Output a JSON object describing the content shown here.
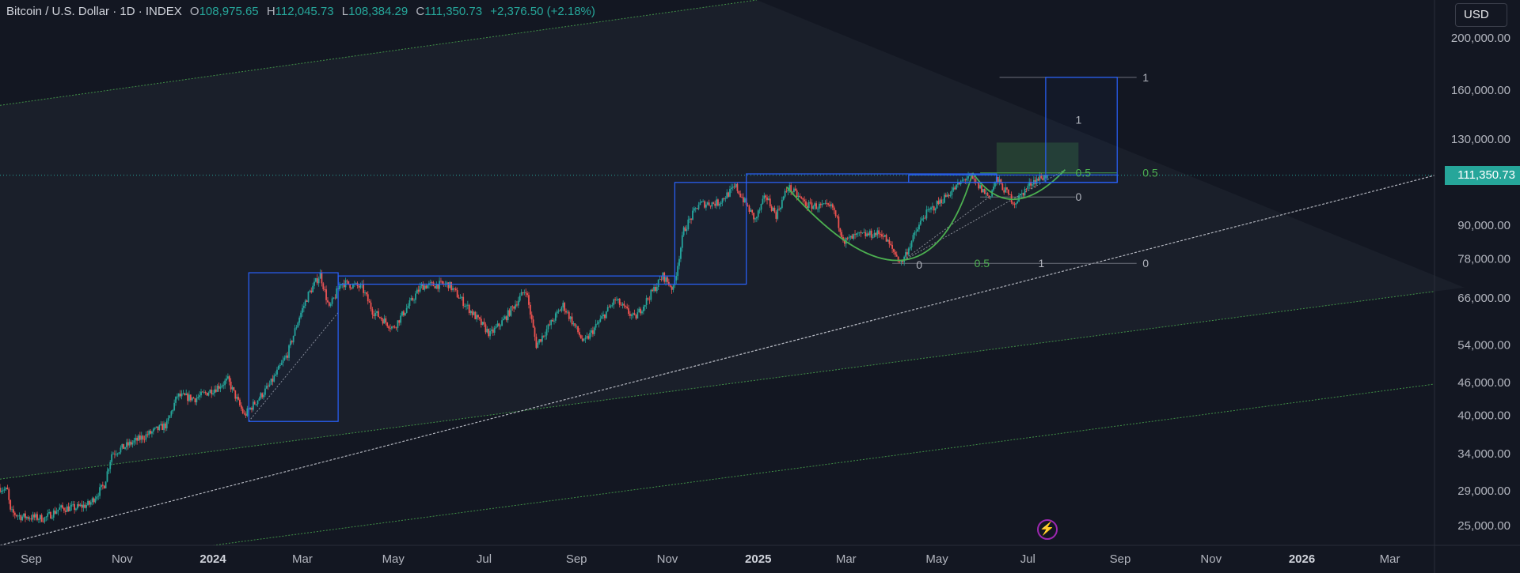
{
  "header": {
    "symbol": "Bitcoin / U.S. Dollar · 1D · INDEX",
    "open_label": "O",
    "open": "108,975.65",
    "high_label": "H",
    "high": "112,045.73",
    "low_label": "L",
    "low": "108,384.29",
    "close_label": "C",
    "close": "111,350.73",
    "change": "+2,376.50 (+2.18%)"
  },
  "currency_button": "USD",
  "last_price_tag": "111,350.73",
  "colors": {
    "background": "#131722",
    "up": "#26a69a",
    "down": "#ef5350",
    "box": "#2962ff",
    "channel": "#4caf50",
    "trend": "#d1d4dc",
    "fib_green": "#4caf50",
    "label": "#b2b5be"
  },
  "icons": [
    "lightning-icon"
  ],
  "chart_data": {
    "type": "candlestick",
    "title": "Bitcoin / U.S. Dollar · 1D · INDEX",
    "y_scale": "log",
    "ylim": [
      23000,
      235000
    ],
    "xlim": [
      "2023-08-11",
      "2026-03-31"
    ],
    "y_ticks": [
      {
        "value": 200000,
        "label": "200,000.00"
      },
      {
        "value": 160000,
        "label": "160,000.00"
      },
      {
        "value": 130000,
        "label": "130,000.00"
      },
      {
        "value": 90000,
        "label": "90,000.00"
      },
      {
        "value": 78000,
        "label": "78,000.00"
      },
      {
        "value": 66000,
        "label": "66,000.00"
      },
      {
        "value": 54000,
        "label": "54,000.00"
      },
      {
        "value": 46000,
        "label": "46,000.00"
      },
      {
        "value": 40000,
        "label": "40,000.00"
      },
      {
        "value": 34000,
        "label": "34,000.00"
      },
      {
        "value": 29000,
        "label": "29,000.00"
      },
      {
        "value": 25000,
        "label": "25,000.00"
      }
    ],
    "x_ticks": [
      {
        "date": "2023-09-01",
        "label": "Sep",
        "bold": false
      },
      {
        "date": "2023-11-01",
        "label": "Nov",
        "bold": false
      },
      {
        "date": "2024-01-01",
        "label": "2024",
        "bold": true
      },
      {
        "date": "2024-03-01",
        "label": "Mar",
        "bold": false
      },
      {
        "date": "2024-05-01",
        "label": "May",
        "bold": false
      },
      {
        "date": "2024-07-01",
        "label": "Jul",
        "bold": false
      },
      {
        "date": "2024-09-01",
        "label": "Sep",
        "bold": false
      },
      {
        "date": "2024-11-01",
        "label": "Nov",
        "bold": false
      },
      {
        "date": "2025-01-01",
        "label": "2025",
        "bold": true
      },
      {
        "date": "2025-03-01",
        "label": "Mar",
        "bold": false
      },
      {
        "date": "2025-05-01",
        "label": "May",
        "bold": false
      },
      {
        "date": "2025-07-01",
        "label": "Jul",
        "bold": false
      },
      {
        "date": "2025-09-01",
        "label": "Sep",
        "bold": false
      },
      {
        "date": "2025-11-01",
        "label": "Nov",
        "bold": false
      },
      {
        "date": "2026-01-01",
        "label": "2026",
        "bold": true
      },
      {
        "date": "2026-03-01",
        "label": "Mar",
        "bold": false
      }
    ],
    "last_price": 111350.73,
    "price_path": [
      [
        "2023-08-11",
        29400
      ],
      [
        "2023-08-16",
        29000
      ],
      [
        "2023-08-18",
        26500
      ],
      [
        "2023-08-25",
        26000
      ],
      [
        "2023-09-10",
        25800
      ],
      [
        "2023-09-20",
        26900
      ],
      [
        "2023-10-01",
        27000
      ],
      [
        "2023-10-10",
        27400
      ],
      [
        "2023-10-20",
        29800
      ],
      [
        "2023-10-25",
        34000
      ],
      [
        "2023-11-15",
        36500
      ],
      [
        "2023-12-01",
        38500
      ],
      [
        "2023-12-08",
        43500
      ],
      [
        "2023-12-20",
        43000
      ],
      [
        "2024-01-03",
        45000
      ],
      [
        "2024-01-11",
        46500
      ],
      [
        "2024-01-22",
        40000
      ],
      [
        "2024-02-08",
        45500
      ],
      [
        "2024-02-20",
        52000
      ],
      [
        "2024-02-28",
        61000
      ],
      [
        "2024-03-05",
        67000
      ],
      [
        "2024-03-13",
        73000
      ],
      [
        "2024-03-19",
        63000
      ],
      [
        "2024-03-27",
        70500
      ],
      [
        "2024-04-10",
        69000
      ],
      [
        "2024-04-17",
        62500
      ],
      [
        "2024-05-01",
        58000
      ],
      [
        "2024-05-20",
        69500
      ],
      [
        "2024-06-07",
        70000
      ],
      [
        "2024-06-25",
        61000
      ],
      [
        "2024-07-05",
        56500
      ],
      [
        "2024-07-14",
        60000
      ],
      [
        "2024-07-29",
        68500
      ],
      [
        "2024-08-05",
        54000
      ],
      [
        "2024-08-23",
        64000
      ],
      [
        "2024-09-06",
        54500
      ],
      [
        "2024-09-27",
        65500
      ],
      [
        "2024-10-10",
        60500
      ],
      [
        "2024-10-29",
        72500
      ],
      [
        "2024-11-05",
        68500
      ],
      [
        "2024-11-12",
        88000
      ],
      [
        "2024-11-22",
        98500
      ],
      [
        "2024-12-05",
        99000
      ],
      [
        "2024-12-17",
        106000
      ],
      [
        "2024-12-30",
        92000
      ],
      [
        "2025-01-06",
        102000
      ],
      [
        "2025-01-13",
        94000
      ],
      [
        "2025-01-21",
        106000
      ],
      [
        "2025-02-03",
        98000
      ],
      [
        "2025-02-20",
        97000
      ],
      [
        "2025-02-28",
        84000
      ],
      [
        "2025-03-08",
        86000
      ],
      [
        "2025-03-25",
        87000
      ],
      [
        "2025-04-07",
        76500
      ],
      [
        "2025-04-22",
        93500
      ],
      [
        "2025-05-09",
        103000
      ],
      [
        "2025-05-22",
        111000
      ],
      [
        "2025-06-05",
        101500
      ],
      [
        "2025-06-10",
        109500
      ],
      [
        "2025-06-22",
        99000
      ],
      [
        "2025-07-04",
        108500
      ],
      [
        "2025-07-14",
        111350.73
      ]
    ],
    "annotations": {
      "channel_lines": [
        {
          "p1": [
            "2023-08-11",
            150000
          ],
          "p2": [
            "2024-12-31",
            235000
          ]
        },
        {
          "p1": [
            "2023-08-11",
            30500
          ],
          "p2": [
            "2026-04-20",
            69000
          ]
        },
        {
          "p1": [
            "2024-01-01",
            23000
          ],
          "p2": [
            "2026-04-20",
            46500
          ]
        }
      ],
      "trend_line": {
        "p1": [
          "2023-08-11",
          23000
        ],
        "p2": [
          "2026-04-20",
          115000
        ]
      },
      "boxes": [
        {
          "t1": "2024-01-25",
          "t2": "2024-03-25",
          "top": 73500,
          "bottom": 39000
        },
        {
          "t1": "2024-03-25",
          "t2": "2024-11-06",
          "top": 72500,
          "bottom": 70000
        },
        {
          "t1": "2024-11-06",
          "t2": "2024-12-24",
          "top": 108000,
          "bottom": 70000
        },
        {
          "t1": "2024-12-24",
          "t2": "2025-06-10",
          "top": 112000,
          "bottom": 108000
        },
        {
          "t1": "2025-07-13",
          "t2": "2025-08-30",
          "top": 169000,
          "bottom": 108000
        },
        {
          "t1": "2025-04-12",
          "t2": "2025-08-30",
          "top": 111500,
          "bottom": 108000
        }
      ],
      "fib_labels": [
        {
          "date": "2025-08-02",
          "price": 141000,
          "text": "1",
          "color": "label"
        },
        {
          "date": "2025-08-02",
          "price": 112500,
          "text": "0.5",
          "color": "fib_green"
        },
        {
          "date": "2025-08-02",
          "price": 101500,
          "text": "0",
          "color": "label"
        },
        {
          "date": "2025-09-16",
          "price": 169000,
          "text": "1",
          "color": "label"
        },
        {
          "date": "2025-09-16",
          "price": 112500,
          "text": "0.5",
          "color": "fib_green"
        },
        {
          "date": "2025-09-16",
          "price": 76500,
          "text": "0",
          "color": "label"
        },
        {
          "date": "2025-04-17",
          "price": 76000,
          "text": "0",
          "color": "label"
        },
        {
          "date": "2025-05-26",
          "price": 76500,
          "text": "0.5",
          "color": "fib_green"
        },
        {
          "date": "2025-07-08",
          "price": 76500,
          "text": "1",
          "color": "label"
        }
      ],
      "fib_lines": [
        {
          "t1": "2025-05-30",
          "t2": "2025-08-30",
          "price": 112500,
          "style": "green"
        },
        {
          "t1": "2025-04-01",
          "t2": "2025-09-12",
          "price": 76500,
          "style": "grey"
        },
        {
          "t1": "2025-05-30",
          "t2": "2025-08-02",
          "price": 101500,
          "style": "grey"
        },
        {
          "t1": "2025-06-12",
          "t2": "2025-09-12",
          "price": 169000,
          "style": "grey"
        }
      ],
      "green_zone": {
        "t1": "2025-06-10",
        "t2": "2025-08-04",
        "top": 128000,
        "bottom": 112000
      },
      "cup_curves": [
        {
          "start": [
            "2025-01-20",
            106000
          ],
          "bottom": [
            "2025-04-07",
            77500
          ],
          "end": [
            "2025-05-25",
            112500
          ]
        },
        {
          "start": [
            "2025-05-25",
            112500
          ],
          "bottom": [
            "2025-06-22",
            100500
          ],
          "end": [
            "2025-07-26",
            114000
          ]
        }
      ]
    }
  }
}
